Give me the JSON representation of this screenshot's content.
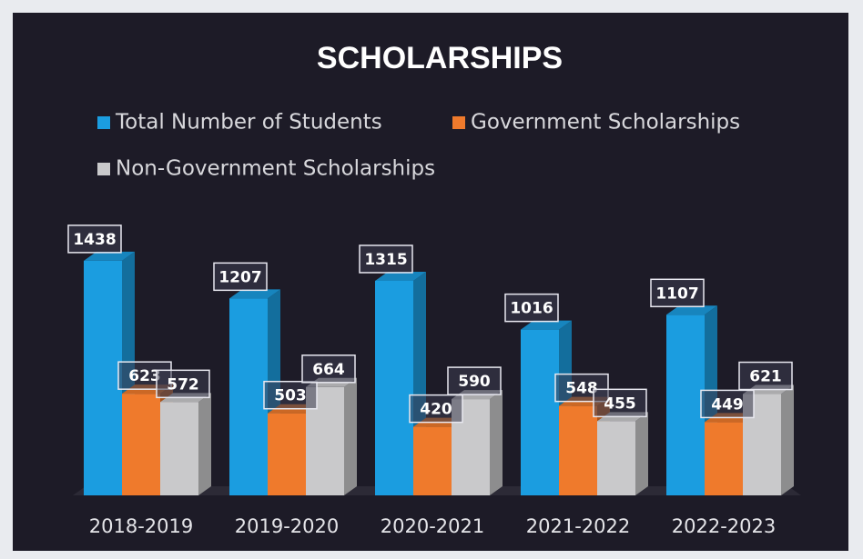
{
  "chart_data": {
    "type": "bar",
    "title": "SCHOLARSHIPS",
    "categories": [
      "2018-2019",
      "2019-2020",
      "2020-2021",
      "2021-2022",
      "2022-2023"
    ],
    "series": [
      {
        "name": "Total Number of Students",
        "color": "#1b9de0",
        "values": [
          1438,
          1207,
          1315,
          1016,
          1107
        ]
      },
      {
        "name": "Government Scholarships",
        "color": "#ef7a2c",
        "values": [
          623,
          503,
          420,
          548,
          449
        ]
      },
      {
        "name": "Non-Government Scholarships",
        "color": "#c9c9cb",
        "values": [
          572,
          664,
          590,
          455,
          621
        ]
      }
    ]
  }
}
